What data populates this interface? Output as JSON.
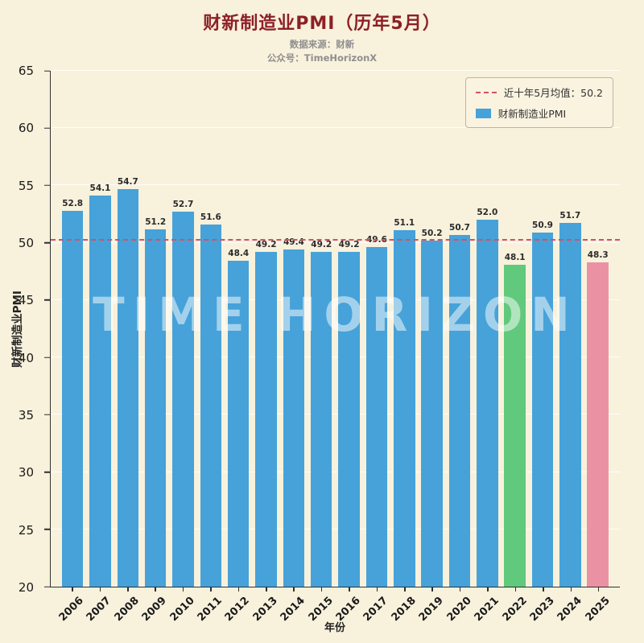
{
  "page": {
    "title": "财新制造业PMI（历年5月）",
    "subtitle1": "数据来源：财新",
    "subtitle2": "公众号：TimeHorizonX",
    "watermark": "TIME HORIZON",
    "background_color": "#f8f1dc",
    "title_color": "#8d2026"
  },
  "chart_data": {
    "type": "bar",
    "title": "财新制造业PMI（历年5月）",
    "xlabel": "年份",
    "ylabel": "财新制造业PMI",
    "ylim": [
      20,
      65
    ],
    "yticks": [
      20,
      25,
      30,
      35,
      40,
      45,
      50,
      55,
      60,
      65
    ],
    "grid": true,
    "legend_position": "top-right",
    "categories": [
      "2006",
      "2007",
      "2008",
      "2009",
      "2010",
      "2011",
      "2012",
      "2013",
      "2014",
      "2015",
      "2016",
      "2017",
      "2018",
      "2019",
      "2020",
      "2021",
      "2022",
      "2023",
      "2024",
      "2025"
    ],
    "values": [
      52.8,
      54.1,
      54.7,
      51.2,
      52.7,
      51.6,
      48.4,
      49.2,
      49.4,
      49.2,
      49.2,
      49.6,
      51.1,
      50.2,
      50.7,
      52.0,
      48.1,
      50.9,
      51.7,
      48.3
    ],
    "bar_default_color": "#46a2d9",
    "bar_color_overrides": {
      "2022": "#61c97c",
      "2025": "#ea92a4"
    },
    "mean_line": {
      "value": 50.2,
      "label": "近十年5月均值：50.2",
      "color": "#d4515f",
      "style": "dashed"
    },
    "legend": [
      {
        "type": "line-dashed",
        "color": "#d4515f",
        "label": "近十年5月均值：50.2"
      },
      {
        "type": "square",
        "color": "#46a2d9",
        "label": "财新制造业PMI"
      }
    ]
  }
}
